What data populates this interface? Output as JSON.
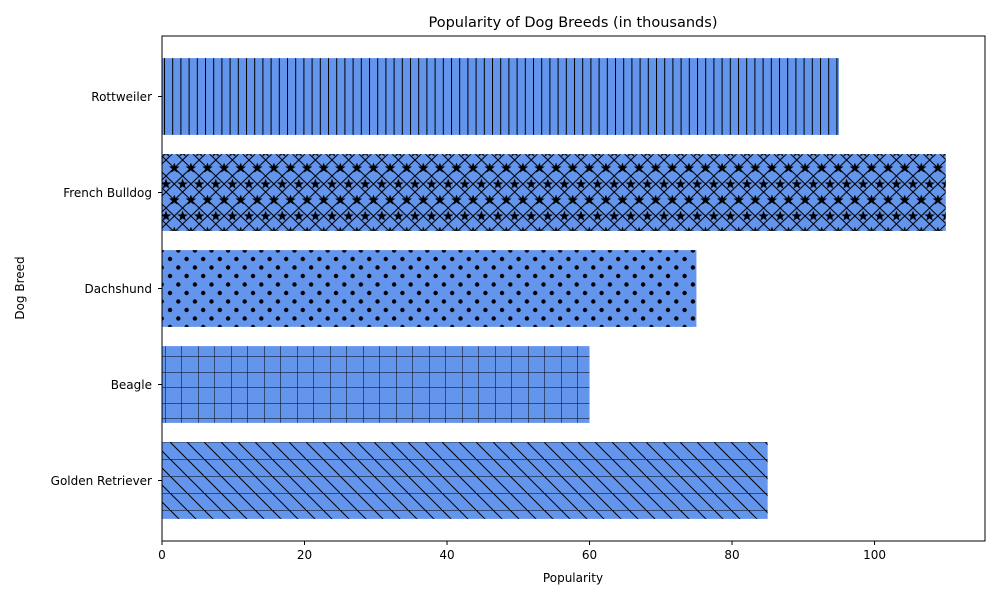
{
  "chart_data": {
    "type": "bar",
    "orientation": "horizontal",
    "title": "Popularity of Dog Breeds (in thousands)",
    "xlabel": "Popularity",
    "ylabel": "Dog Breed",
    "categories": [
      "Golden Retriever",
      "Beagle",
      "Dachshund",
      "French Bulldog",
      "Rottweiler"
    ],
    "values": [
      85,
      60,
      75,
      110,
      95
    ],
    "hatches": [
      "hbackslash",
      "grid",
      "dots",
      "stars",
      "vlines"
    ],
    "xlim": [
      0,
      115.5
    ],
    "xticks": [
      0,
      20,
      40,
      60,
      80,
      100
    ],
    "bar_color": "#6495ED",
    "edge_color": "#000000",
    "grid": false,
    "legend": "none"
  }
}
